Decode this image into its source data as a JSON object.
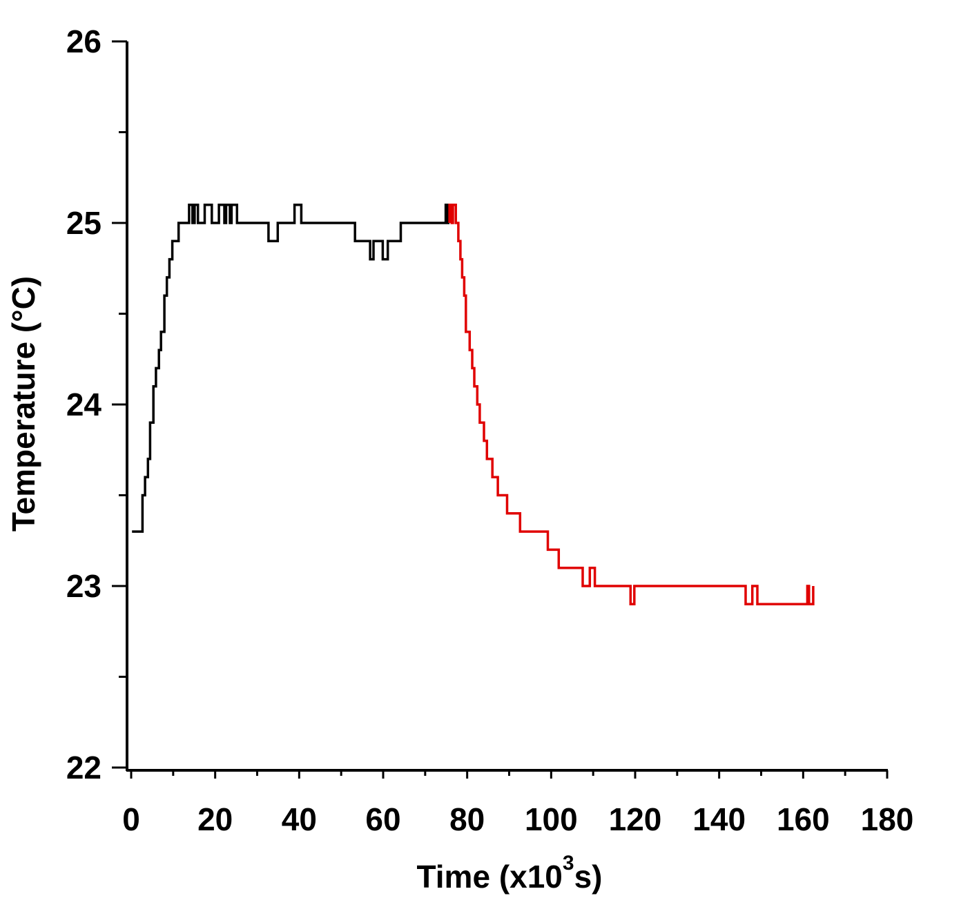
{
  "chart_data": {
    "type": "line",
    "xlabel": "Time (x10",
    "xlabel_superscript": "3",
    "xlabel_suffix": "s)",
    "ylabel": "Temperature (°C)",
    "xlim": [
      0,
      180
    ],
    "ylim": [
      22,
      26
    ],
    "x_ticks": [
      "0",
      "20",
      "40",
      "60",
      "80",
      "100",
      "120",
      "140",
      "160",
      "180"
    ],
    "y_ticks": [
      "22",
      "23",
      "24",
      "25",
      "26"
    ],
    "grid": false,
    "legend": "none",
    "series": [
      {
        "color": "#000000",
        "step": true,
        "points": [
          [
            0.2,
            23.3
          ],
          [
            2.7,
            23.3
          ],
          [
            2.7,
            23.5
          ],
          [
            3.3,
            23.5
          ],
          [
            3.3,
            23.6
          ],
          [
            4.0,
            23.6
          ],
          [
            4.0,
            23.7
          ],
          [
            4.5,
            23.7
          ],
          [
            4.5,
            23.9
          ],
          [
            5.3,
            23.9
          ],
          [
            5.3,
            24.1
          ],
          [
            5.9,
            24.1
          ],
          [
            5.9,
            24.2
          ],
          [
            6.6,
            24.2
          ],
          [
            6.6,
            24.3
          ],
          [
            7.1,
            24.3
          ],
          [
            7.1,
            24.4
          ],
          [
            7.9,
            24.4
          ],
          [
            7.9,
            24.6
          ],
          [
            8.5,
            24.6
          ],
          [
            8.5,
            24.7
          ],
          [
            9.1,
            24.7
          ],
          [
            9.1,
            24.8
          ],
          [
            9.8,
            24.8
          ],
          [
            9.8,
            24.9
          ],
          [
            11.3,
            24.9
          ],
          [
            11.3,
            25.0
          ],
          [
            13.8,
            25.0
          ],
          [
            13.8,
            25.1
          ],
          [
            14.6,
            25.1
          ],
          [
            14.6,
            25.0
          ],
          [
            15.1,
            25.0
          ],
          [
            15.1,
            25.1
          ],
          [
            15.9,
            25.1
          ],
          [
            15.9,
            25.0
          ],
          [
            17.5,
            25.0
          ],
          [
            17.5,
            25.1
          ],
          [
            19.2,
            25.1
          ],
          [
            19.2,
            25.0
          ],
          [
            20.9,
            25.0
          ],
          [
            20.9,
            25.1
          ],
          [
            22.2,
            25.1
          ],
          [
            22.2,
            25.0
          ],
          [
            22.6,
            25.0
          ],
          [
            22.6,
            25.1
          ],
          [
            23.5,
            25.1
          ],
          [
            23.5,
            25.0
          ],
          [
            23.9,
            25.0
          ],
          [
            23.9,
            25.1
          ],
          [
            25.2,
            25.1
          ],
          [
            25.2,
            25.0
          ],
          [
            32.7,
            25.0
          ],
          [
            32.7,
            24.9
          ],
          [
            34.9,
            24.9
          ],
          [
            34.9,
            25.0
          ],
          [
            38.9,
            25.0
          ],
          [
            38.9,
            25.1
          ],
          [
            40.5,
            25.1
          ],
          [
            40.5,
            25.0
          ],
          [
            53.3,
            25.0
          ],
          [
            53.3,
            24.9
          ],
          [
            56.9,
            24.9
          ],
          [
            56.9,
            24.8
          ],
          [
            57.7,
            24.8
          ],
          [
            57.7,
            24.9
          ],
          [
            59.9,
            24.9
          ],
          [
            59.9,
            24.8
          ],
          [
            61.1,
            24.8
          ],
          [
            61.1,
            24.9
          ],
          [
            64.2,
            24.9
          ],
          [
            64.2,
            25.0
          ],
          [
            74.9,
            25.0
          ],
          [
            74.9,
            25.1
          ],
          [
            75.4,
            25.1
          ],
          [
            75.4,
            25.0
          ],
          [
            75.8,
            25.0
          ]
        ]
      },
      {
        "color": "#e00000",
        "step": true,
        "points": [
          [
            75.8,
            25.0
          ],
          [
            75.8,
            25.1
          ],
          [
            76.3,
            25.1
          ],
          [
            76.3,
            25.0
          ],
          [
            76.6,
            25.0
          ],
          [
            76.6,
            25.1
          ],
          [
            77.3,
            25.1
          ],
          [
            77.3,
            25.0
          ],
          [
            77.9,
            25.0
          ],
          [
            77.9,
            24.9
          ],
          [
            78.4,
            24.9
          ],
          [
            78.4,
            24.8
          ],
          [
            78.8,
            24.8
          ],
          [
            78.8,
            24.7
          ],
          [
            79.3,
            24.7
          ],
          [
            79.3,
            24.6
          ],
          [
            79.7,
            24.6
          ],
          [
            79.7,
            24.4
          ],
          [
            80.6,
            24.4
          ],
          [
            80.6,
            24.3
          ],
          [
            81.2,
            24.3
          ],
          [
            81.2,
            24.2
          ],
          [
            81.7,
            24.2
          ],
          [
            81.7,
            24.1
          ],
          [
            82.4,
            24.1
          ],
          [
            82.4,
            24.0
          ],
          [
            83.0,
            24.0
          ],
          [
            83.0,
            23.9
          ],
          [
            84.0,
            23.9
          ],
          [
            84.0,
            23.8
          ],
          [
            84.7,
            23.8
          ],
          [
            84.7,
            23.7
          ],
          [
            86.0,
            23.7
          ],
          [
            86.0,
            23.6
          ],
          [
            87.3,
            23.6
          ],
          [
            87.3,
            23.5
          ],
          [
            89.5,
            23.5
          ],
          [
            89.5,
            23.4
          ],
          [
            92.6,
            23.4
          ],
          [
            92.6,
            23.3
          ],
          [
            99.2,
            23.3
          ],
          [
            99.2,
            23.2
          ],
          [
            101.8,
            23.2
          ],
          [
            101.8,
            23.1
          ],
          [
            107.5,
            23.1
          ],
          [
            107.5,
            23.0
          ],
          [
            109.2,
            23.0
          ],
          [
            109.2,
            23.1
          ],
          [
            110.4,
            23.1
          ],
          [
            110.4,
            23.0
          ],
          [
            118.9,
            23.0
          ],
          [
            118.9,
            22.9
          ],
          [
            119.8,
            22.9
          ],
          [
            119.8,
            23.0
          ],
          [
            146.3,
            23.0
          ],
          [
            146.3,
            22.9
          ],
          [
            147.9,
            22.9
          ],
          [
            147.9,
            23.0
          ],
          [
            149.1,
            23.0
          ],
          [
            149.1,
            22.9
          ],
          [
            161.0,
            22.9
          ],
          [
            161.0,
            23.0
          ],
          [
            161.4,
            23.0
          ],
          [
            161.4,
            22.9
          ],
          [
            162.4,
            22.9
          ],
          [
            162.4,
            23.0
          ]
        ]
      }
    ]
  }
}
